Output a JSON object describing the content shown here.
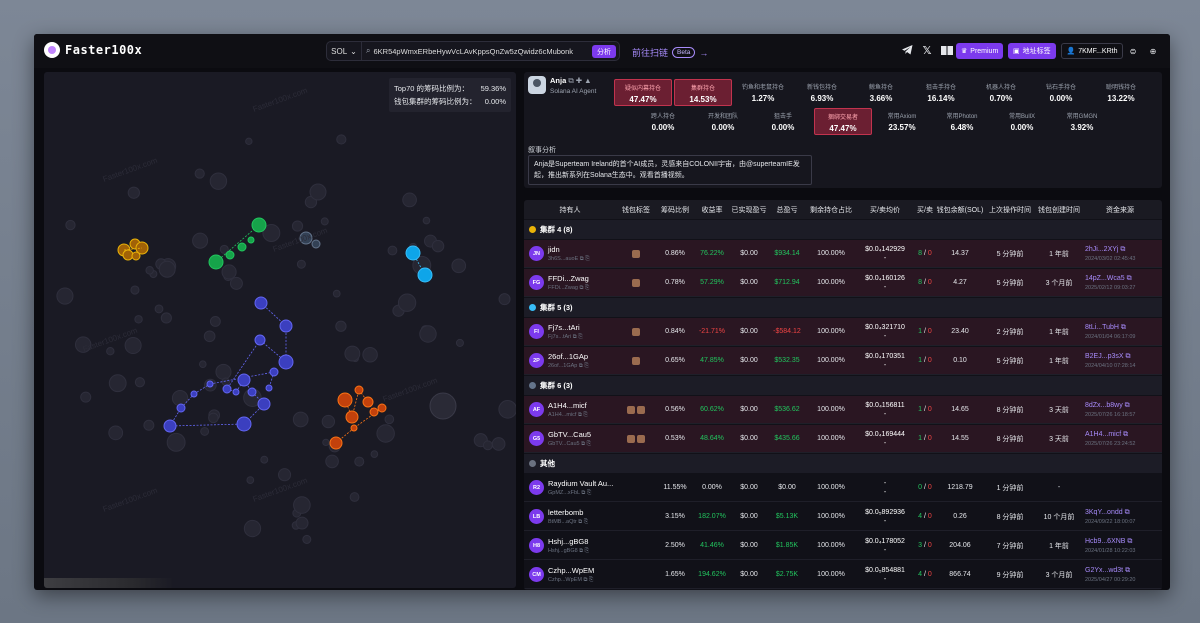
{
  "app": {
    "logo_text": "Faster100x"
  },
  "search": {
    "chain": "SOL",
    "value": "6KR54pWmxERbeHywVcLAvKppsQnZw5zQwidz6cMubonk",
    "analyze_label": "分析"
  },
  "scan": {
    "label": "前往扫链",
    "badge": "Beta"
  },
  "header": {
    "premium_label": "Premium",
    "tag_label": "地址标签",
    "account_label": "7KMF...KRth"
  },
  "graph": {
    "ratios": [
      {
        "label": "Top70 的筹码比例为：",
        "value": "59.36%"
      },
      {
        "label": "钱包集群的筹码比例为：",
        "value": "0.00%"
      }
    ],
    "watermark": "Faster100x.com"
  },
  "agent": {
    "name": "Anja",
    "subtitle": "Solana AI Agent"
  },
  "stats": {
    "row1": [
      {
        "label": "疑似内幕持仓",
        "value": "47.47%",
        "hl": true
      },
      {
        "label": "集群持仓",
        "value": "14.53%",
        "hl": true
      },
      {
        "label": "钓鱼和老鼠持仓",
        "value": "1.27%",
        "hl": false
      },
      {
        "label": "新钱包持仓",
        "value": "6.93%",
        "hl": false
      },
      {
        "label": "鲸鱼持仓",
        "value": "3.66%",
        "hl": false
      },
      {
        "label": "狙击手持仓",
        "value": "16.14%",
        "hl": false
      },
      {
        "label": "机器人持仓",
        "value": "0.70%",
        "hl": false
      },
      {
        "label": "钻石手持仓",
        "value": "0.00%",
        "hl": false
      },
      {
        "label": "聪明钱持仓",
        "value": "13.22%",
        "hl": false
      }
    ],
    "row2": [
      {
        "label": "跨人持仓",
        "value": "0.00%",
        "hl": false
      },
      {
        "label": "开发和团队",
        "value": "0.00%",
        "hl": false
      },
      {
        "label": "狙击手",
        "value": "0.00%",
        "hl": false
      },
      {
        "label": "捆绑交易者",
        "value": "47.47%",
        "hl": true
      },
      {
        "label": "常用Axiom",
        "value": "23.57%",
        "hl": false
      },
      {
        "label": "常用Photon",
        "value": "6.48%",
        "hl": false
      },
      {
        "label": "常用BullX",
        "value": "0.00%",
        "hl": false
      },
      {
        "label": "常用GMGN",
        "value": "3.92%",
        "hl": false
      }
    ]
  },
  "narrative": {
    "label": "叙事分析",
    "text": "Anja是Superteam Ireland的首个AI成员，灵感来自COLONII宇宙，由@superteamIE发起，推出新系列在Solana生态中。观看首播视频。"
  },
  "table": {
    "headers": [
      "持有人",
      "钱包标签",
      "筹码比例",
      "收益率",
      "已实现盈亏",
      "总盈亏",
      "剩余持仓占比",
      "买/卖均价",
      "买/卖",
      "钱包余额(SOL)",
      "上次操作时间",
      "钱包创建时间",
      "资金来源"
    ],
    "groups": [
      {
        "name": "集群 4 (8)",
        "color": "#eab308",
        "rows": [
          {
            "av": "JN",
            "name": "jidn",
            "sub": "3h6S...auoE",
            "tags": 1,
            "ratio": "0.86%",
            "rate": "76.22%",
            "rate_c": "pos",
            "realized": "$0.00",
            "total": "$934.14",
            "total_c": "pos",
            "remain": "100.00%",
            "price": "$0.0₄142929",
            "price2": "-",
            "buy": "8",
            "sell": "0",
            "bal": "14.37",
            "last": "5 分钟前",
            "created": "1 年前",
            "src": "2hJi...2XYj",
            "src_time": "2024/03/02 02:45:43",
            "hl": true
          },
          {
            "av": "FG",
            "name": "FFDi...Zwag",
            "sub": "FFDi...Zwag",
            "tags": 1,
            "ratio": "0.78%",
            "rate": "57.29%",
            "rate_c": "pos",
            "realized": "$0.00",
            "total": "$712.94",
            "total_c": "pos",
            "remain": "100.00%",
            "price": "$0.0₄160126",
            "price2": "-",
            "buy": "8",
            "sell": "0",
            "bal": "4.27",
            "last": "5 分钟前",
            "created": "3 个月前",
            "src": "14pZ...Wca5",
            "src_time": "2025/02/12 09:03:27",
            "hl": true
          }
        ]
      },
      {
        "name": "集群 5 (3)",
        "color": "#38bdf8",
        "rows": [
          {
            "av": "FI",
            "name": "Fj7s...tAri",
            "sub": "Fj7s...tAri",
            "tags": 1,
            "ratio": "0.84%",
            "rate": "-21.71%",
            "rate_c": "neg",
            "realized": "$0.00",
            "total": "-$584.12",
            "total_c": "neg",
            "remain": "100.00%",
            "price": "$0.0₄321710",
            "price2": "-",
            "buy": "1",
            "sell": "0",
            "bal": "23.40",
            "last": "2 分钟前",
            "created": "1 年前",
            "src": "8tLi...TubH",
            "src_time": "2024/01/04 06:17:09",
            "hl": true
          },
          {
            "av": "2P",
            "name": "26of...1GAp",
            "sub": "26of...1GAp",
            "tags": 1,
            "ratio": "0.65%",
            "rate": "47.85%",
            "rate_c": "pos",
            "realized": "$0.00",
            "total": "$532.35",
            "total_c": "pos",
            "remain": "100.00%",
            "price": "$0.0₄170351",
            "price2": "-",
            "buy": "1",
            "sell": "0",
            "bal": "0.10",
            "last": "5 分钟前",
            "created": "1 年前",
            "src": "B2EJ...p3sX",
            "src_time": "2024/04/10 07:28:14",
            "hl": true
          }
        ]
      },
      {
        "name": "集群 6 (3)",
        "color": "#64748b",
        "rows": [
          {
            "av": "AF",
            "name": "A1H4...micf",
            "sub": "A1H4...micf",
            "tags": 2,
            "ratio": "0.56%",
            "rate": "60.62%",
            "rate_c": "pos",
            "realized": "$0.00",
            "total": "$536.62",
            "total_c": "pos",
            "remain": "100.00%",
            "price": "$0.0₄156811",
            "price2": "-",
            "buy": "1",
            "sell": "0",
            "bal": "14.65",
            "last": "8 分钟前",
            "created": "3 天前",
            "src": "8dZx...b8wy",
            "src_time": "2025/07/26 16:18:57",
            "hl": true
          },
          {
            "av": "G5",
            "name": "GbTV...Cau5",
            "sub": "GbTV...Cau5",
            "tags": 2,
            "ratio": "0.53%",
            "rate": "48.64%",
            "rate_c": "pos",
            "realized": "$0.00",
            "total": "$435.66",
            "total_c": "pos",
            "remain": "100.00%",
            "price": "$0.0₄169444",
            "price2": "-",
            "buy": "1",
            "sell": "0",
            "bal": "14.55",
            "last": "8 分钟前",
            "created": "3 天前",
            "src": "A1H4...micf",
            "src_time": "2025/07/26 23:24:52",
            "hl": true
          }
        ]
      },
      {
        "name": "其他",
        "color": "#6b7280",
        "rows": [
          {
            "av": "R2",
            "name": "Raydium Vault Au...",
            "sub": "GpMZ...xFbL",
            "tags": 0,
            "ratio": "11.55%",
            "rate": "0.00%",
            "rate_c": "",
            "realized": "$0.00",
            "total": "$0.00",
            "total_c": "",
            "remain": "100.00%",
            "price": "-",
            "price2": "-",
            "buy": "0",
            "sell": "0",
            "bal": "1218.79",
            "last": "1 分钟前",
            "created": "-",
            "src": "",
            "src_time": "",
            "hl": false
          },
          {
            "av": "LB",
            "name": "letterbomb",
            "sub": "BtMB...aQtr",
            "tags": 0,
            "ratio": "3.15%",
            "rate": "182.07%",
            "rate_c": "pos",
            "realized": "$0.00",
            "total": "$5.13K",
            "total_c": "pos",
            "remain": "100.00%",
            "price": "$0.0₅892936",
            "price2": "-",
            "buy": "4",
            "sell": "0",
            "bal": "0.26",
            "last": "8 分钟前",
            "created": "10 个月前",
            "src": "3KqY...ondd",
            "src_time": "2024/09/22 18:00:07",
            "hl": false
          },
          {
            "av": "H8",
            "name": "Hshj...gBG8",
            "sub": "Hshj...gBG8",
            "tags": 0,
            "ratio": "2.50%",
            "rate": "41.46%",
            "rate_c": "pos",
            "realized": "$0.00",
            "total": "$1.85K",
            "total_c": "pos",
            "remain": "100.00%",
            "price": "$0.0₄178052",
            "price2": "-",
            "buy": "3",
            "sell": "0",
            "bal": "204.06",
            "last": "7 分钟前",
            "created": "1 年前",
            "src": "Hcb9...6XNB",
            "src_time": "2024/01/28 10:22:03",
            "hl": false
          },
          {
            "av": "CM",
            "name": "Czhp...WpEM",
            "sub": "Czhp...WpEM",
            "tags": 0,
            "ratio": "1.65%",
            "rate": "194.62%",
            "rate_c": "pos",
            "realized": "$0.00",
            "total": "$2.75K",
            "total_c": "pos",
            "remain": "100.00%",
            "price": "$0.0₅854881",
            "price2": "-",
            "buy": "4",
            "sell": "0",
            "bal": "866.74",
            "last": "9 分钟前",
            "created": "3 个月前",
            "src": "G2Yx...wd3t",
            "src_time": "2025/04/27 00:29:20",
            "hl": false
          }
        ]
      }
    ]
  }
}
